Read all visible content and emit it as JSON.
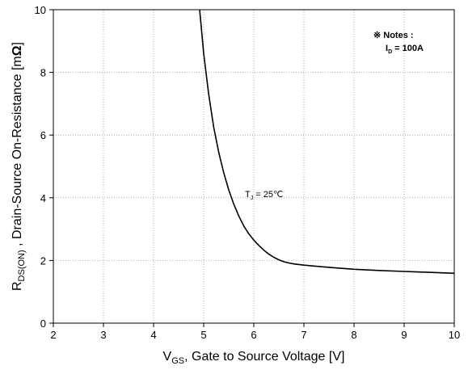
{
  "chart_data": {
    "type": "line",
    "xlabel": {
      "main": "V",
      "sub": "GS",
      "rest": ", Gate to Source Voltage [V]"
    },
    "ylabel": {
      "main": "R",
      "sub": "DS(ON)",
      "rest": " , Drain-Source On-Resistance [m",
      "omega": "Ω",
      "close": "]"
    },
    "xlim": [
      2,
      10
    ],
    "ylim": [
      0,
      10
    ],
    "xticks": [
      2,
      3,
      4,
      5,
      6,
      7,
      8,
      9,
      10
    ],
    "yticks": [
      0,
      2,
      4,
      6,
      8,
      10
    ],
    "grid": true,
    "series": [
      {
        "name": "",
        "x": [
          4.92,
          5.0,
          5.1,
          5.2,
          5.3,
          5.4,
          5.5,
          5.6,
          5.7,
          5.8,
          5.9,
          6.0,
          6.1,
          6.2,
          6.3,
          6.4,
          6.5,
          6.6,
          6.7,
          6.8,
          7.0,
          7.5,
          8.0,
          8.5,
          9.0,
          9.5,
          10.0
        ],
        "y": [
          10.0,
          8.6,
          7.3,
          6.25,
          5.45,
          4.8,
          4.25,
          3.8,
          3.42,
          3.1,
          2.85,
          2.65,
          2.48,
          2.33,
          2.2,
          2.1,
          2.02,
          1.96,
          1.92,
          1.89,
          1.85,
          1.78,
          1.72,
          1.68,
          1.65,
          1.62,
          1.59
        ]
      }
    ],
    "annotations": {
      "tj": {
        "main": "T",
        "sub": "J",
        "rest": " = 25℃"
      },
      "notes_title": "※ Notes :",
      "id_line": {
        "main": "I",
        "sub": "D",
        "rest": " = 100A"
      }
    }
  }
}
